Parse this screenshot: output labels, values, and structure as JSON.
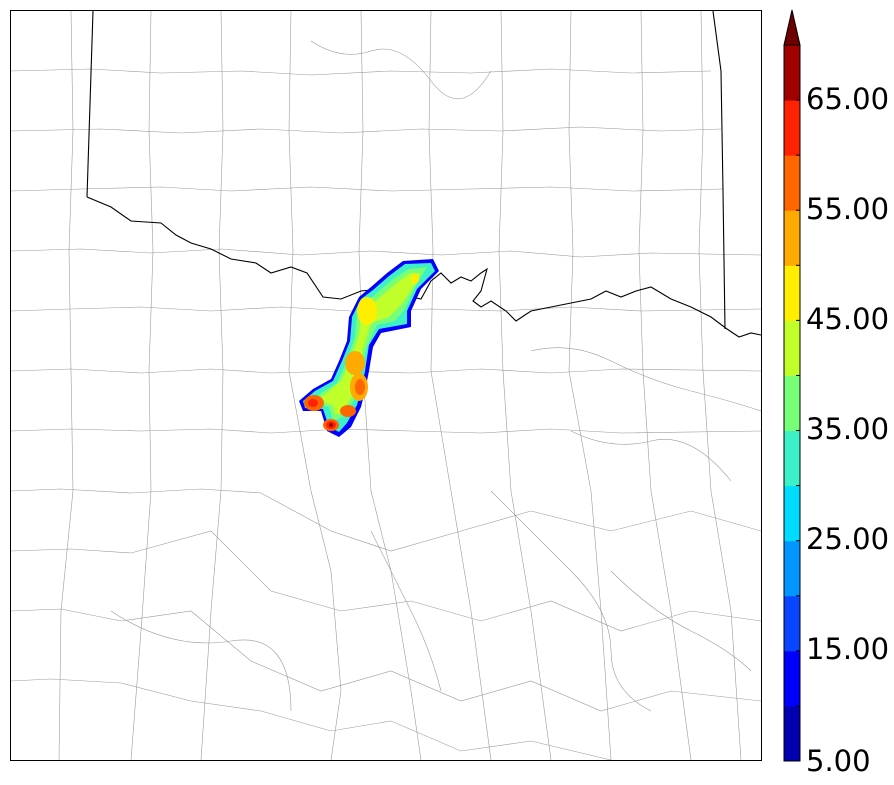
{
  "map": {
    "boundaries": [
      "state-borders",
      "county-borders"
    ],
    "field": "radar-reflectivity-swath"
  },
  "colorbar": {
    "levels": [
      5,
      10,
      15,
      20,
      25,
      30,
      35,
      40,
      45,
      50,
      55,
      60,
      65,
      70
    ],
    "colors": [
      "#0000b0",
      "#0000ff",
      "#0a46ff",
      "#0096ff",
      "#00dcff",
      "#3cf0c8",
      "#78ff78",
      "#c0ff2a",
      "#ffee00",
      "#ffaa00",
      "#ff6600",
      "#ff2200",
      "#a00000",
      "#6e0000"
    ],
    "extend": "max",
    "tick_labels": [
      "5.00",
      "15.00",
      "25.00",
      "35.00",
      "45.00",
      "55.00",
      "65.00"
    ]
  }
}
